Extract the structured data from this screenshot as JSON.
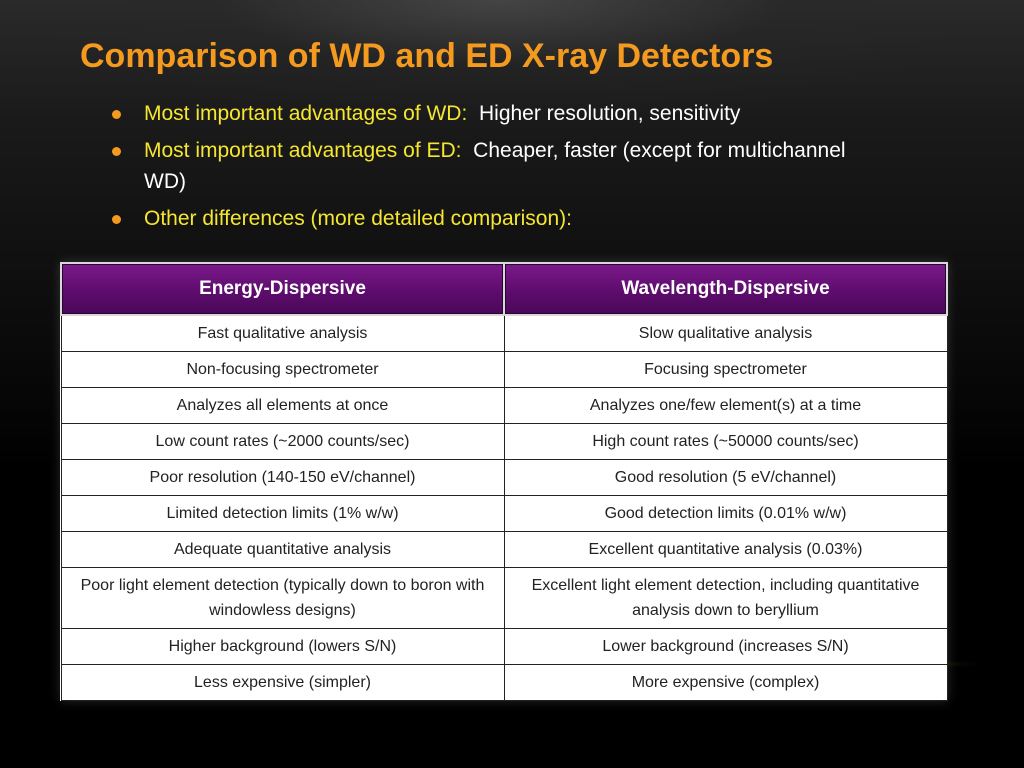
{
  "slide": {
    "title": "Comparison of WD and ED X-ray Detectors",
    "bullets": [
      {
        "lead": "Most important advantages of WD:",
        "rest": "Higher resolution, sensitivity"
      },
      {
        "lead": "Most important advantages of ED:",
        "rest": "Cheaper, faster (except for multichannel WD)"
      },
      {
        "lead": "Other differences (more detailed comparison):",
        "rest": ""
      }
    ],
    "colors": {
      "title": "#f39a1f",
      "bullet_lead": "#f5e62f",
      "bullet_marker": "#f39a1f",
      "table_header": "#5e0c6e"
    }
  },
  "table": {
    "headers": [
      "Energy-Dispersive",
      "Wavelength-Dispersive"
    ],
    "rows": [
      [
        "Fast qualitative analysis",
        "Slow qualitative analysis"
      ],
      [
        "Non-focusing spectrometer",
        "Focusing spectrometer"
      ],
      [
        "Analyzes all elements at once",
        "Analyzes one/few element(s) at a time"
      ],
      [
        "Low count rates (~2000 counts/sec)",
        "High count rates (~50000 counts/sec)"
      ],
      [
        "Poor resolution (140-150 eV/channel)",
        "Good resolution (5 eV/channel)"
      ],
      [
        "Limited detection limits (1% w/w)",
        "Good detection limits (0.01% w/w)"
      ],
      [
        "Adequate quantitative analysis",
        "Excellent quantitative analysis (0.03%)"
      ],
      [
        "Poor light element detection (typically down to boron with windowless designs)",
        "Excellent light element detection, including quantitative analysis down to beryllium"
      ],
      [
        "Higher background (lowers S/N)",
        "Lower background (increases S/N)"
      ],
      [
        "Less expensive (simpler)",
        "More expensive (complex)"
      ]
    ]
  }
}
